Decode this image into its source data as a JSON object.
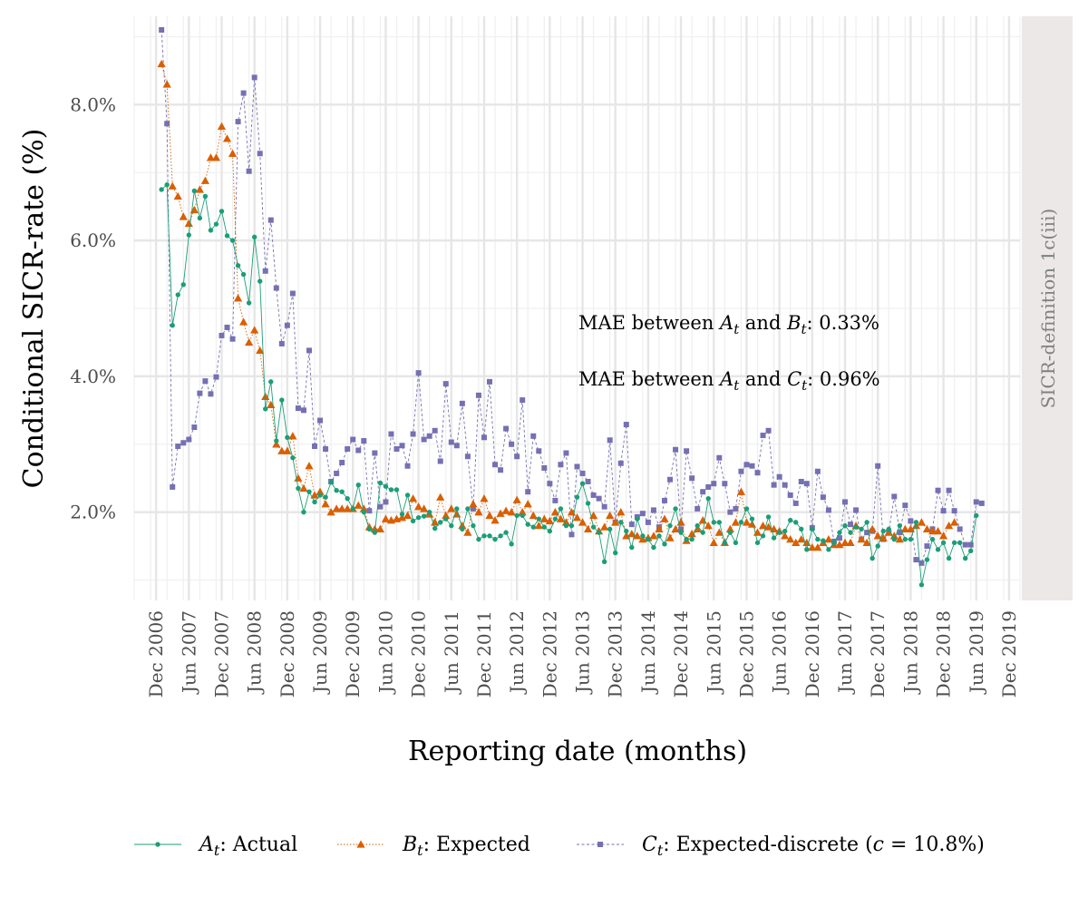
{
  "chart_data": {
    "type": "line",
    "xlabel": "Reporting date (months)",
    "ylabel": "Conditional SICR-rate (%)",
    "facet_label": "SICR-definition 1c(iii)",
    "x_range": [
      "2006-08",
      "2020-02"
    ],
    "ylim": [
      0.7,
      9.3
    ],
    "y_ticks": [
      2.0,
      4.0,
      6.0,
      8.0
    ],
    "y_tick_labels": [
      "2.0%",
      "4.0%",
      "6.0%",
      "8.0%"
    ],
    "x_ticks": [
      "2006-12",
      "2007-06",
      "2007-12",
      "2008-06",
      "2008-12",
      "2009-06",
      "2009-12",
      "2010-06",
      "2010-12",
      "2011-06",
      "2011-12",
      "2012-06",
      "2012-12",
      "2013-06",
      "2013-12",
      "2014-06",
      "2014-12",
      "2015-06",
      "2015-12",
      "2016-06",
      "2016-12",
      "2017-06",
      "2017-12",
      "2018-06",
      "2018-12",
      "2019-06",
      "2019-12"
    ],
    "x_tick_labels": [
      "Dec 2006",
      "Jun 2007",
      "Dec 2007",
      "Jun 2008",
      "Dec 2008",
      "Jun 2009",
      "Dec 2009",
      "Jun 2010",
      "Dec 2010",
      "Jun 2011",
      "Dec 2011",
      "Jun 2012",
      "Dec 2012",
      "Jun 2013",
      "Dec 2013",
      "Jun 2014",
      "Dec 2014",
      "Jun 2015",
      "Dec 2015",
      "Jun 2016",
      "Dec 2016",
      "Jun 2017",
      "Dec 2017",
      "Jun 2018",
      "Dec 2018",
      "Jun 2019",
      "Dec 2019"
    ],
    "x_start": "2007-01",
    "grid": true,
    "legend_position": "bottom",
    "annotations": [
      {
        "prefix": "MAE between ",
        "a": "A",
        "mid": " and ",
        "b": "B",
        "suffix": ": 0.33%"
      },
      {
        "prefix": "MAE between ",
        "a": "A",
        "mid": " and ",
        "b": "C",
        "suffix": ": 0.96%"
      }
    ],
    "series": [
      {
        "name": "Actual",
        "symbol": "A",
        "color": "#1b9e77",
        "marker": "circle",
        "line": "solid",
        "legend_suffix": ": Actual",
        "values": [
          6.75,
          6.82,
          4.75,
          5.2,
          5.35,
          6.08,
          6.73,
          6.33,
          6.65,
          6.15,
          6.24,
          6.43,
          6.07,
          6.0,
          5.63,
          5.5,
          5.08,
          6.05,
          5.4,
          3.52,
          3.92,
          3.05,
          3.65,
          3.1,
          2.8,
          2.35,
          2.0,
          2.3,
          2.15,
          2.25,
          2.22,
          2.44,
          2.32,
          2.3,
          2.2,
          2.05,
          2.4,
          2.0,
          1.75,
          1.7,
          2.43,
          2.38,
          2.33,
          2.33,
          1.97,
          2.25,
          1.87,
          1.92,
          1.94,
          2.0,
          1.76,
          1.85,
          1.9,
          1.8,
          2.05,
          1.75,
          2.05,
          1.8,
          1.6,
          1.65,
          1.65,
          1.6,
          1.65,
          1.7,
          1.53,
          1.95,
          1.95,
          1.82,
          1.78,
          1.9,
          1.78,
          1.72,
          1.9,
          2.05,
          1.8,
          1.8,
          2.22,
          2.42,
          2.13,
          1.78,
          1.7,
          1.27,
          1.75,
          1.4,
          1.85,
          1.72,
          1.48,
          1.9,
          1.65,
          1.6,
          1.48,
          1.65,
          1.53,
          1.8,
          2.05,
          1.7,
          1.6,
          1.6,
          1.8,
          1.7,
          2.2,
          1.85,
          1.85,
          1.55,
          1.7,
          1.55,
          1.85,
          2.05,
          1.9,
          1.55,
          1.65,
          1.93,
          1.62,
          1.7,
          1.72,
          1.88,
          1.85,
          1.75,
          1.45,
          1.75,
          1.6,
          1.58,
          1.45,
          1.55,
          1.7,
          1.8,
          1.7,
          1.78,
          1.75,
          1.85,
          1.32,
          1.5,
          1.72,
          1.75,
          1.6,
          1.8,
          1.6,
          1.6,
          1.85,
          0.93,
          1.3,
          1.6,
          1.45,
          1.55,
          1.32,
          1.55,
          1.55,
          1.32,
          1.43,
          1.95
        ]
      },
      {
        "name": "Expected",
        "symbol": "B",
        "color": "#d95f02",
        "marker": "triangle",
        "line": "dotted",
        "legend_suffix": ": Expected",
        "values": [
          8.6,
          8.3,
          6.8,
          6.65,
          6.35,
          6.25,
          6.45,
          6.75,
          6.88,
          7.22,
          7.22,
          7.68,
          7.5,
          7.28,
          5.15,
          4.8,
          4.5,
          4.68,
          4.38,
          3.7,
          3.58,
          3.0,
          2.9,
          2.9,
          3.12,
          2.5,
          2.35,
          2.68,
          2.25,
          2.3,
          2.12,
          2.0,
          2.05,
          2.05,
          2.05,
          2.05,
          2.1,
          2.05,
          1.78,
          1.75,
          1.75,
          1.9,
          1.88,
          1.9,
          1.92,
          1.95,
          2.2,
          2.08,
          2.05,
          1.97,
          1.85,
          2.22,
          1.95,
          2.05,
          1.97,
          1.8,
          1.7,
          2.12,
          2.0,
          2.2,
          1.95,
          1.88,
          1.98,
          2.02,
          2.0,
          2.18,
          2.0,
          2.12,
          1.95,
          1.8,
          1.9,
          1.87,
          2.0,
          1.9,
          1.85,
          2.0,
          1.92,
          1.85,
          1.75,
          1.95,
          1.72,
          1.78,
          1.95,
          1.85,
          2.0,
          1.65,
          1.68,
          1.65,
          1.6,
          1.62,
          1.65,
          1.75,
          1.9,
          1.62,
          1.75,
          1.85,
          1.58,
          1.68,
          1.75,
          1.88,
          1.8,
          1.55,
          1.7,
          1.55,
          1.75,
          1.85,
          2.3,
          1.85,
          1.82,
          1.7,
          1.8,
          1.78,
          1.75,
          1.72,
          1.65,
          1.6,
          1.55,
          1.6,
          1.55,
          1.48,
          1.48,
          1.55,
          1.6,
          1.52,
          1.52,
          1.55,
          1.55,
          1.8,
          1.6,
          1.55,
          1.75,
          1.65,
          1.62,
          1.7,
          1.65,
          1.6,
          1.75,
          1.75,
          1.8,
          1.85,
          1.75,
          1.72,
          1.72,
          1.65,
          1.8,
          1.85
        ]
      },
      {
        "name": "Expected-discrete",
        "symbol": "C",
        "color": "#7570b3",
        "marker": "square",
        "line": "dashed",
        "legend_suffix": ": Expected-discrete (",
        "legend_param": "c",
        "legend_value": " = 10.8%)",
        "values": [
          9.1,
          7.72,
          2.37,
          2.97,
          3.02,
          3.07,
          3.25,
          3.75,
          3.93,
          3.74,
          3.99,
          4.6,
          4.72,
          4.55,
          7.75,
          8.17,
          7.02,
          8.4,
          7.28,
          5.55,
          6.3,
          5.3,
          4.48,
          4.75,
          5.22,
          3.53,
          3.5,
          4.38,
          2.97,
          3.35,
          2.93,
          2.45,
          2.57,
          2.73,
          2.93,
          3.07,
          2.91,
          3.05,
          2.02,
          2.87,
          2.08,
          2.15,
          3.15,
          2.93,
          2.98,
          2.68,
          3.15,
          4.05,
          3.07,
          3.12,
          3.2,
          2.75,
          3.89,
          3.03,
          2.98,
          3.6,
          2.82,
          2.05,
          3.72,
          3.1,
          3.92,
          2.7,
          2.62,
          3.23,
          3.0,
          2.82,
          3.65,
          2.3,
          3.12,
          2.9,
          2.65,
          2.42,
          2.17,
          2.7,
          2.87,
          1.67,
          2.67,
          2.57,
          2.45,
          2.25,
          2.2,
          2.08,
          3.06,
          1.85,
          2.72,
          3.29,
          1.82,
          1.93,
          1.98,
          1.85,
          2.03,
          1.78,
          2.17,
          2.48,
          2.92,
          1.75,
          2.9,
          2.5,
          2.05,
          2.3,
          2.37,
          2.42,
          2.8,
          2.42,
          2.0,
          2.05,
          2.6,
          2.7,
          2.68,
          2.58,
          3.13,
          3.2,
          2.4,
          2.52,
          2.4,
          2.25,
          2.13,
          2.45,
          2.42,
          1.77,
          2.6,
          2.22,
          2.03,
          1.57,
          1.62,
          2.15,
          1.82,
          2.03,
          1.6,
          1.7,
          1.72,
          2.68,
          1.6,
          1.7,
          2.23,
          1.7,
          2.1,
          1.87,
          1.3,
          1.25,
          1.5,
          1.75,
          2.32,
          2.02,
          2.32,
          2.02,
          1.75,
          1.52,
          1.52,
          2.15,
          2.13
        ]
      }
    ]
  }
}
